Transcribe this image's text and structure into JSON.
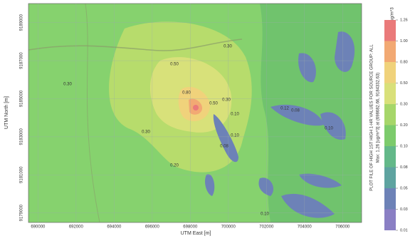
{
  "chart_data": {
    "type": "contour",
    "xlabel": "UTM East [m]",
    "ylabel": "UTM North [m]",
    "xlim": [
      689500,
      707000
    ],
    "xticks": [
      690000,
      692000,
      694000,
      696000,
      698000,
      700000,
      702000,
      704000,
      706000
    ],
    "ylim": [
      9178500,
      9190000
    ],
    "yticks": [
      9179000,
      9181000,
      9183000,
      9185000,
      9187000,
      9189000
    ],
    "grid": true,
    "contour_labels": [
      "0.30",
      "0.50",
      "0.30",
      "0.80",
      "0.50",
      "0.30",
      "0.20",
      "0.10",
      "0.12",
      "0.08",
      "0.10",
      "0.10",
      "0.08",
      "0.30",
      "0.10"
    ],
    "colorbar": {
      "unit": "ug/m^3",
      "ticks": [
        0.01,
        0.03,
        0.05,
        0.08,
        {
          "value": 0.1,
          "label": "0.10"
        },
        {
          "value": 0.2,
          "label": "0.20"
        },
        {
          "value": 0.3,
          "label": "0.30"
        },
        {
          "value": 0.5,
          "label": "0.50"
        },
        {
          "value": 0.8,
          "label": "0.80"
        },
        {
          "value": 1,
          "label": "1.00"
        },
        1.26
      ],
      "colors": [
        "#8a7fc4",
        "#6d82b7",
        "#5ea3a0",
        "#63b889",
        "#7ccb6c",
        "#a6d66a",
        "#d9e07a",
        "#f0d27b",
        "#f2a973",
        "#ea7a7a"
      ]
    },
    "side_title": "PLOT FILE OF HIGH 1ST HIGH 1-HR VALUES FOR SOURCE GROUP: ALL",
    "side_subtitle": "Max: 1.26 [ug/m^3] at (698682.66, 9184332.63)"
  }
}
